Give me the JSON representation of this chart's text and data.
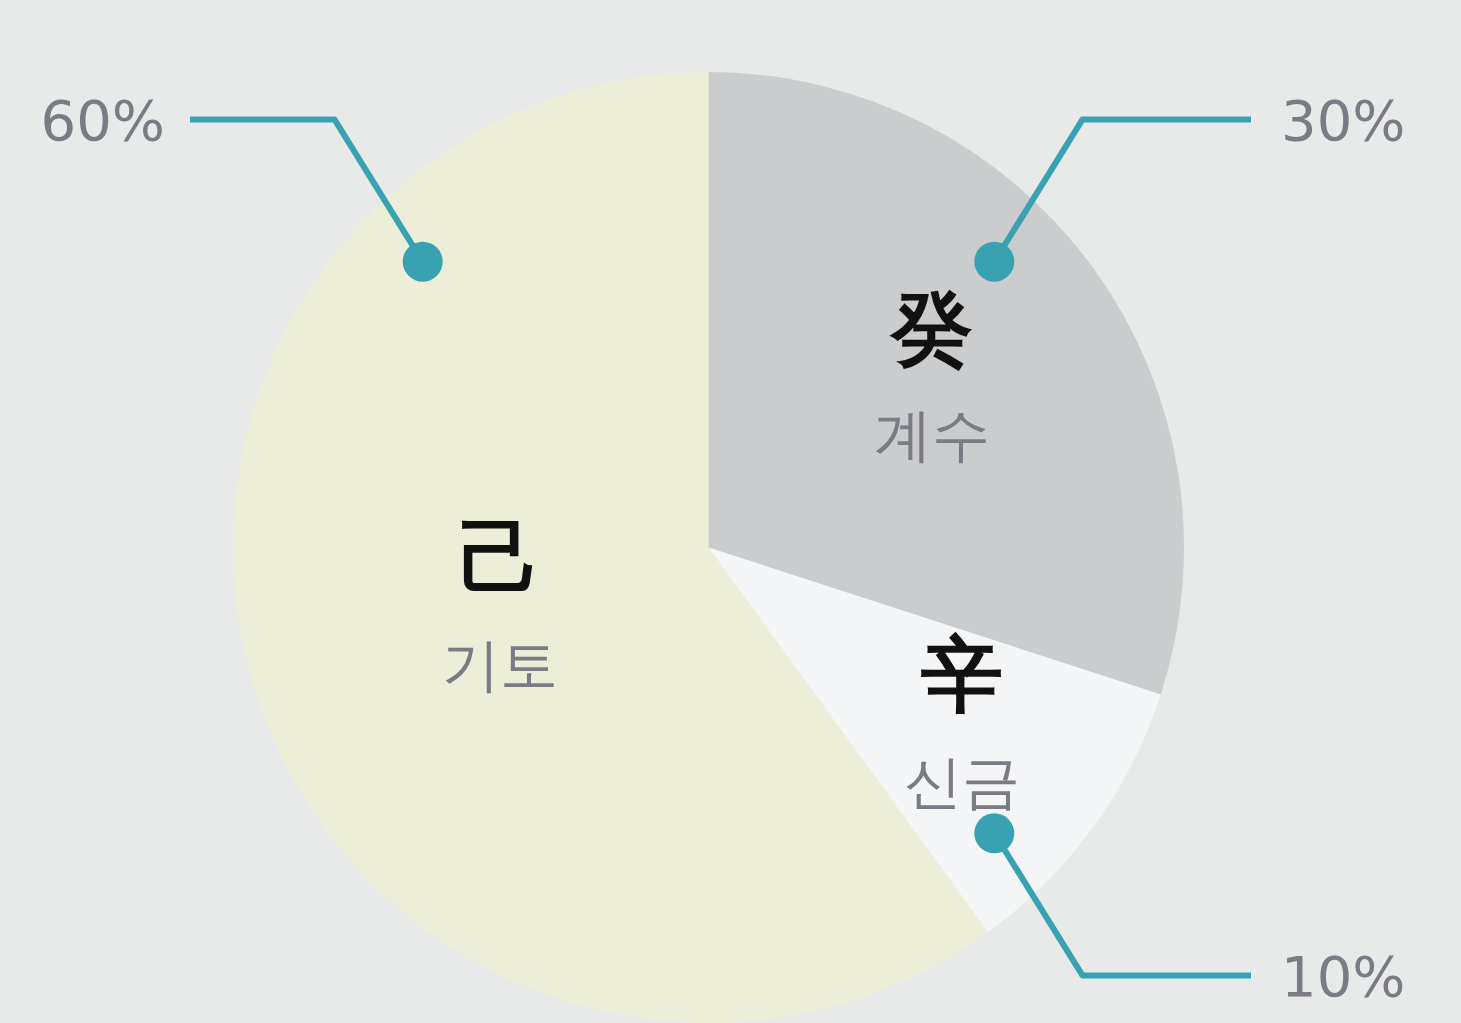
{
  "chart_data": {
    "type": "pie",
    "categories": [
      "癸\n계수",
      "辛\n신금",
      "己\n기토"
    ],
    "values": [
      30,
      10,
      60
    ],
    "value_labels": [
      "30%",
      "10%",
      "60%"
    ],
    "colors": [
      "#cbcccd",
      "#f4f5f6",
      "#edeed8"
    ],
    "legend": false
  }
}
